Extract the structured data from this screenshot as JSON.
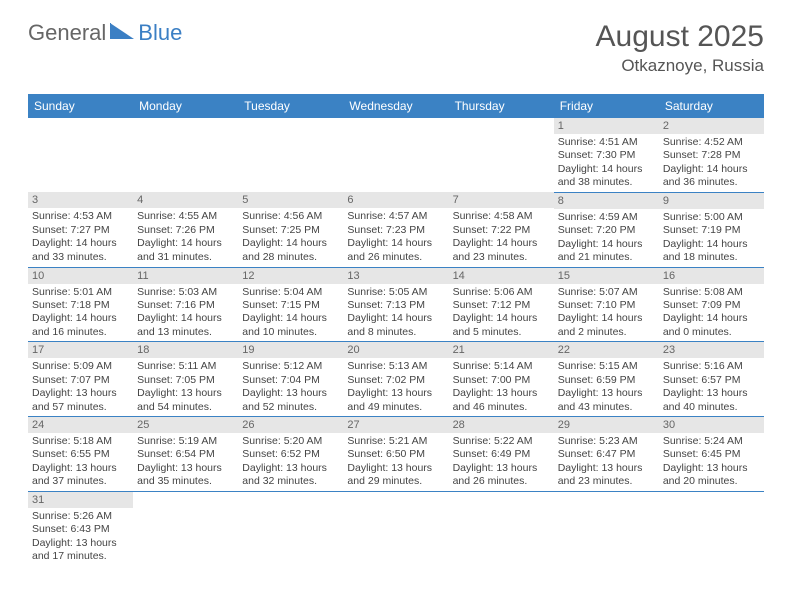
{
  "logo": {
    "part1": "General",
    "part2": "Blue"
  },
  "header": {
    "month_year": "August 2025",
    "location": "Otkaznoye, Russia"
  },
  "colors": {
    "header_bg": "#3b82c4",
    "daynum_bg": "#e6e6e6",
    "text": "#444444"
  },
  "weekdays": [
    "Sunday",
    "Monday",
    "Tuesday",
    "Wednesday",
    "Thursday",
    "Friday",
    "Saturday"
  ],
  "weeks": [
    [
      null,
      null,
      null,
      null,
      null,
      {
        "d": "1",
        "sr": "Sunrise: 4:51 AM",
        "ss": "Sunset: 7:30 PM",
        "dl1": "Daylight: 14 hours",
        "dl2": "and 38 minutes."
      },
      {
        "d": "2",
        "sr": "Sunrise: 4:52 AM",
        "ss": "Sunset: 7:28 PM",
        "dl1": "Daylight: 14 hours",
        "dl2": "and 36 minutes."
      }
    ],
    [
      {
        "d": "3",
        "sr": "Sunrise: 4:53 AM",
        "ss": "Sunset: 7:27 PM",
        "dl1": "Daylight: 14 hours",
        "dl2": "and 33 minutes."
      },
      {
        "d": "4",
        "sr": "Sunrise: 4:55 AM",
        "ss": "Sunset: 7:26 PM",
        "dl1": "Daylight: 14 hours",
        "dl2": "and 31 minutes."
      },
      {
        "d": "5",
        "sr": "Sunrise: 4:56 AM",
        "ss": "Sunset: 7:25 PM",
        "dl1": "Daylight: 14 hours",
        "dl2": "and 28 minutes."
      },
      {
        "d": "6",
        "sr": "Sunrise: 4:57 AM",
        "ss": "Sunset: 7:23 PM",
        "dl1": "Daylight: 14 hours",
        "dl2": "and 26 minutes."
      },
      {
        "d": "7",
        "sr": "Sunrise: 4:58 AM",
        "ss": "Sunset: 7:22 PM",
        "dl1": "Daylight: 14 hours",
        "dl2": "and 23 minutes."
      },
      {
        "d": "8",
        "sr": "Sunrise: 4:59 AM",
        "ss": "Sunset: 7:20 PM",
        "dl1": "Daylight: 14 hours",
        "dl2": "and 21 minutes."
      },
      {
        "d": "9",
        "sr": "Sunrise: 5:00 AM",
        "ss": "Sunset: 7:19 PM",
        "dl1": "Daylight: 14 hours",
        "dl2": "and 18 minutes."
      }
    ],
    [
      {
        "d": "10",
        "sr": "Sunrise: 5:01 AM",
        "ss": "Sunset: 7:18 PM",
        "dl1": "Daylight: 14 hours",
        "dl2": "and 16 minutes."
      },
      {
        "d": "11",
        "sr": "Sunrise: 5:03 AM",
        "ss": "Sunset: 7:16 PM",
        "dl1": "Daylight: 14 hours",
        "dl2": "and 13 minutes."
      },
      {
        "d": "12",
        "sr": "Sunrise: 5:04 AM",
        "ss": "Sunset: 7:15 PM",
        "dl1": "Daylight: 14 hours",
        "dl2": "and 10 minutes."
      },
      {
        "d": "13",
        "sr": "Sunrise: 5:05 AM",
        "ss": "Sunset: 7:13 PM",
        "dl1": "Daylight: 14 hours",
        "dl2": "and 8 minutes."
      },
      {
        "d": "14",
        "sr": "Sunrise: 5:06 AM",
        "ss": "Sunset: 7:12 PM",
        "dl1": "Daylight: 14 hours",
        "dl2": "and 5 minutes."
      },
      {
        "d": "15",
        "sr": "Sunrise: 5:07 AM",
        "ss": "Sunset: 7:10 PM",
        "dl1": "Daylight: 14 hours",
        "dl2": "and 2 minutes."
      },
      {
        "d": "16",
        "sr": "Sunrise: 5:08 AM",
        "ss": "Sunset: 7:09 PM",
        "dl1": "Daylight: 14 hours",
        "dl2": "and 0 minutes."
      }
    ],
    [
      {
        "d": "17",
        "sr": "Sunrise: 5:09 AM",
        "ss": "Sunset: 7:07 PM",
        "dl1": "Daylight: 13 hours",
        "dl2": "and 57 minutes."
      },
      {
        "d": "18",
        "sr": "Sunrise: 5:11 AM",
        "ss": "Sunset: 7:05 PM",
        "dl1": "Daylight: 13 hours",
        "dl2": "and 54 minutes."
      },
      {
        "d": "19",
        "sr": "Sunrise: 5:12 AM",
        "ss": "Sunset: 7:04 PM",
        "dl1": "Daylight: 13 hours",
        "dl2": "and 52 minutes."
      },
      {
        "d": "20",
        "sr": "Sunrise: 5:13 AM",
        "ss": "Sunset: 7:02 PM",
        "dl1": "Daylight: 13 hours",
        "dl2": "and 49 minutes."
      },
      {
        "d": "21",
        "sr": "Sunrise: 5:14 AM",
        "ss": "Sunset: 7:00 PM",
        "dl1": "Daylight: 13 hours",
        "dl2": "and 46 minutes."
      },
      {
        "d": "22",
        "sr": "Sunrise: 5:15 AM",
        "ss": "Sunset: 6:59 PM",
        "dl1": "Daylight: 13 hours",
        "dl2": "and 43 minutes."
      },
      {
        "d": "23",
        "sr": "Sunrise: 5:16 AM",
        "ss": "Sunset: 6:57 PM",
        "dl1": "Daylight: 13 hours",
        "dl2": "and 40 minutes."
      }
    ],
    [
      {
        "d": "24",
        "sr": "Sunrise: 5:18 AM",
        "ss": "Sunset: 6:55 PM",
        "dl1": "Daylight: 13 hours",
        "dl2": "and 37 minutes."
      },
      {
        "d": "25",
        "sr": "Sunrise: 5:19 AM",
        "ss": "Sunset: 6:54 PM",
        "dl1": "Daylight: 13 hours",
        "dl2": "and 35 minutes."
      },
      {
        "d": "26",
        "sr": "Sunrise: 5:20 AM",
        "ss": "Sunset: 6:52 PM",
        "dl1": "Daylight: 13 hours",
        "dl2": "and 32 minutes."
      },
      {
        "d": "27",
        "sr": "Sunrise: 5:21 AM",
        "ss": "Sunset: 6:50 PM",
        "dl1": "Daylight: 13 hours",
        "dl2": "and 29 minutes."
      },
      {
        "d": "28",
        "sr": "Sunrise: 5:22 AM",
        "ss": "Sunset: 6:49 PM",
        "dl1": "Daylight: 13 hours",
        "dl2": "and 26 minutes."
      },
      {
        "d": "29",
        "sr": "Sunrise: 5:23 AM",
        "ss": "Sunset: 6:47 PM",
        "dl1": "Daylight: 13 hours",
        "dl2": "and 23 minutes."
      },
      {
        "d": "30",
        "sr": "Sunrise: 5:24 AM",
        "ss": "Sunset: 6:45 PM",
        "dl1": "Daylight: 13 hours",
        "dl2": "and 20 minutes."
      }
    ],
    [
      {
        "d": "31",
        "sr": "Sunrise: 5:26 AM",
        "ss": "Sunset: 6:43 PM",
        "dl1": "Daylight: 13 hours",
        "dl2": "and 17 minutes."
      },
      null,
      null,
      null,
      null,
      null,
      null
    ]
  ]
}
